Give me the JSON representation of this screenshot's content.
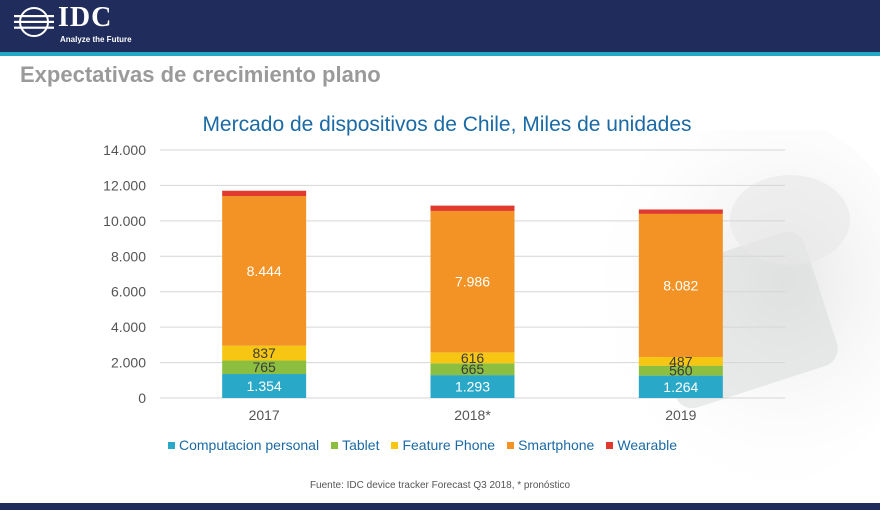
{
  "header": {
    "logo_text": "IDC",
    "logo_tagline": "Analyze the Future",
    "background_color": "#1f2c5c"
  },
  "slide": {
    "title": "Expectativas de crecimiento plano",
    "source_note": "Fuente: IDC device tracker Forecast Q3 2018, * pronóstico"
  },
  "chart_data": {
    "type": "bar",
    "stacked": true,
    "title": "Mercado de dispositivos de Chile, Miles de unidades",
    "xlabel": "",
    "ylabel": "",
    "categories": [
      "2017",
      "2018*",
      "2019"
    ],
    "ylim": [
      0,
      14000
    ],
    "yticks": [
      0,
      2000,
      4000,
      6000,
      8000,
      10000,
      12000,
      14000
    ],
    "ytick_labels": [
      "0",
      "2.000",
      "4.000",
      "6.000",
      "8.000",
      "10.000",
      "12.000",
      "14.000"
    ],
    "grid": true,
    "legend_position": "bottom",
    "series": [
      {
        "name": "Computacion personal",
        "color": "#2aa8c8",
        "values": [
          1354,
          1293,
          1264
        ],
        "labels": [
          "1.354",
          "1.293",
          "1.264"
        ],
        "label_color": "#ffffff"
      },
      {
        "name": "Tablet",
        "color": "#8cbf3f",
        "values": [
          765,
          665,
          560
        ],
        "labels": [
          "765",
          "665",
          "560"
        ],
        "label_color": "#3b3b3b"
      },
      {
        "name": "Feature Phone",
        "color": "#f7c613",
        "values": [
          837,
          616,
          487
        ],
        "labels": [
          "837",
          "616",
          "487"
        ],
        "label_color": "#3b3b3b"
      },
      {
        "name": "Smartphone",
        "color": "#f39325",
        "values": [
          8444,
          7986,
          8082
        ],
        "labels": [
          "8.444",
          "7.986",
          "8.082"
        ],
        "label_color": "#ffffff"
      },
      {
        "name": "Wearable",
        "color": "#e03a2f",
        "values": [
          300,
          300,
          250
        ],
        "labels": [
          "",
          "",
          ""
        ],
        "label_color": "#ffffff"
      }
    ]
  }
}
